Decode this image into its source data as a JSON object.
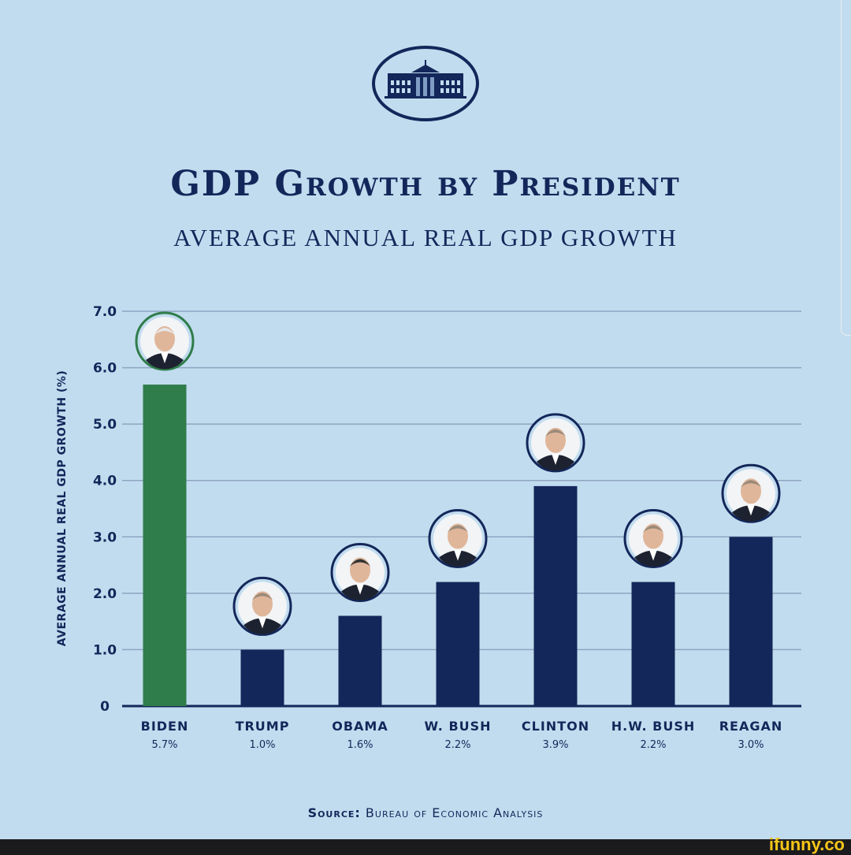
{
  "logo": {
    "icon": "white-house-seal-icon"
  },
  "header": {
    "title": "GDP Growth by President",
    "subtitle": "AVERAGE ANNUAL REAL GDP GROWTH"
  },
  "chart_data": {
    "type": "bar",
    "title": "GDP Growth by President",
    "subtitle": "AVERAGE ANNUAL REAL GDP GROWTH",
    "ylabel": "AVERAGE ANNUAL REAL GDP GROWTH (%)",
    "xlabel": "",
    "ylim": [
      0,
      7.0
    ],
    "yticks": [
      "0",
      "1.0",
      "2.0",
      "3.0",
      "4.0",
      "5.0",
      "6.0",
      "7.0"
    ],
    "grid": true,
    "categories": [
      "BIDEN",
      "TRUMP",
      "OBAMA",
      "W. BUSH",
      "CLINTON",
      "H.W. BUSH",
      "REAGAN"
    ],
    "values": [
      5.7,
      1.0,
      1.6,
      2.2,
      3.9,
      2.2,
      3.0
    ],
    "value_labels": [
      "5.7%",
      "1.0%",
      "1.6%",
      "2.2%",
      "3.9%",
      "2.2%",
      "3.0%"
    ],
    "colors": [
      "#2f7d4a",
      "#13275a",
      "#13275a",
      "#13275a",
      "#13275a",
      "#13275a",
      "#13275a"
    ],
    "markers": "portrait-photo-icon"
  },
  "source": {
    "label": "Source:",
    "text": "Bureau of Economic Analysis"
  },
  "footer": {
    "watermark": "ifunny.co"
  }
}
